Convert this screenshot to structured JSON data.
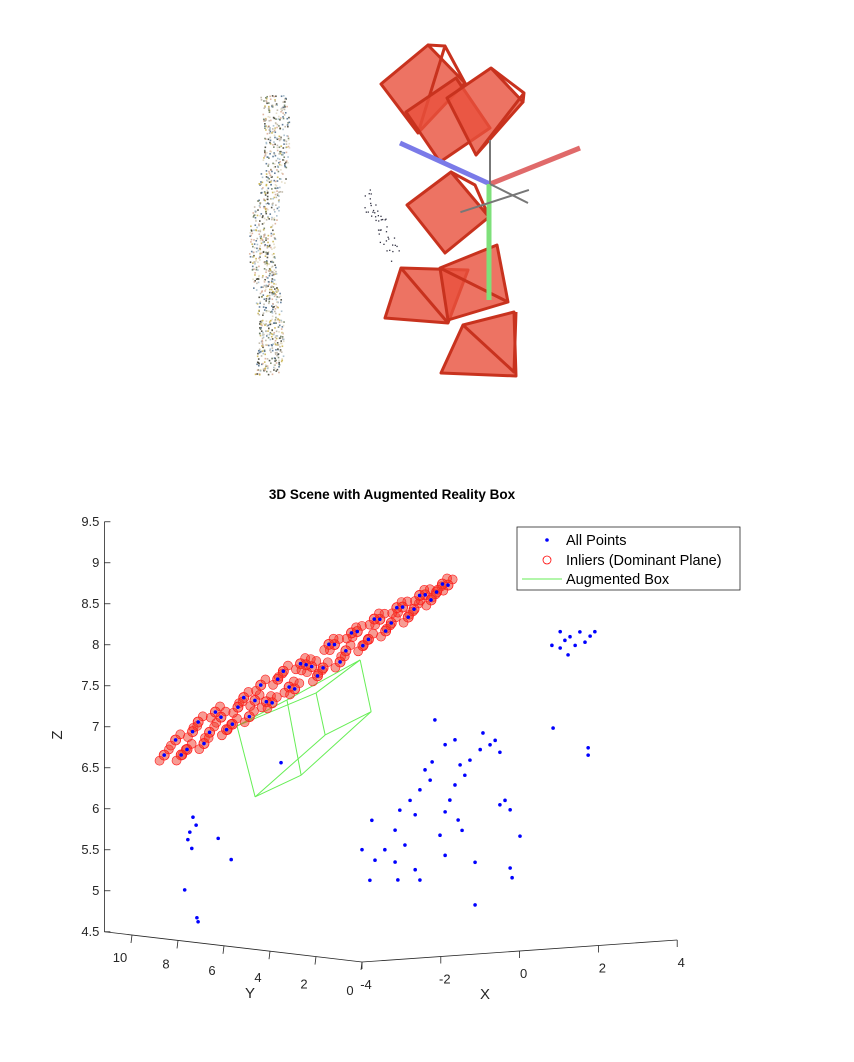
{
  "top_figure": {
    "camera_color": "#e8503c",
    "axis_colors": {
      "x": "#e06a6a",
      "y": "#7a7ae8",
      "z": "#7ee07a"
    }
  },
  "chart_data": {
    "type": "scatter",
    "projection": "3d",
    "title": "3D Scene with Augmented Reality Box",
    "xlabel": "X",
    "ylabel": "Y",
    "zlabel": "Z",
    "xlim": [
      -4,
      4
    ],
    "ylim": [
      0,
      11.2
    ],
    "zlim": [
      4.5,
      9.5
    ],
    "xticks": [
      "-4",
      "-2",
      "0",
      "2",
      "4"
    ],
    "xtick_values": [
      -4,
      -2,
      0,
      2,
      4
    ],
    "yticks": [
      "10",
      "8",
      "6",
      "4",
      "2",
      "0"
    ],
    "ytick_values": [
      10,
      8,
      6,
      4,
      2,
      0
    ],
    "zticks": [
      "9.5",
      "9",
      "8.5",
      "8",
      "7.5",
      "7",
      "6.5",
      "6",
      "5.5",
      "5",
      "4.5"
    ],
    "ztick_values": [
      9.5,
      9,
      8.5,
      8,
      7.5,
      7,
      6.5,
      6,
      5.5,
      5,
      4.5
    ],
    "grid": false,
    "legend_position": "top-right",
    "legend": [
      {
        "label": "All Points",
        "marker": "dot",
        "color": "#0000ff"
      },
      {
        "label": "Inliers (Dominant Plane)",
        "marker": "circle",
        "color": "#ff0000"
      },
      {
        "label": "Augmented Box",
        "marker": "line",
        "color": "#66ee55"
      }
    ],
    "inliers": [
      [
        -4.0,
        8.6,
        6.74
      ],
      [
        -3.88,
        8.31,
        6.93
      ],
      [
        -3.76,
        8.02,
        6.82
      ],
      [
        -3.64,
        7.74,
        7.16
      ],
      [
        -3.52,
        7.45,
        7.04
      ],
      [
        -3.4,
        7.16,
        7.23
      ],
      [
        -3.28,
        6.87,
        7.15
      ],
      [
        -3.16,
        6.58,
        7.48
      ],
      [
        -3.04,
        6.3,
        7.45
      ],
      [
        -2.92,
        6.01,
        7.44
      ],
      [
        -2.8,
        5.72,
        7.72
      ],
      [
        -2.68,
        5.43,
        7.63
      ],
      [
        -2.56,
        5.14,
        7.92
      ],
      [
        -2.44,
        4.86,
        7.89
      ],
      [
        -2.32,
        4.57,
        7.88
      ],
      [
        -2.2,
        4.28,
        8.17
      ],
      [
        -2.08,
        3.99,
        8.1
      ],
      [
        -1.96,
        3.7,
        8.34
      ],
      [
        -1.84,
        3.42,
        8.25
      ],
      [
        -1.72,
        3.13,
        8.5
      ],
      [
        -1.6,
        2.84,
        8.46
      ],
      [
        -1.48,
        2.55,
        8.66
      ],
      [
        -1.36,
        2.26,
        8.64
      ],
      [
        -1.24,
        1.98,
        8.82
      ],
      [
        -1.12,
        1.69,
        8.86
      ],
      [
        -1.0,
        1.4,
        8.95
      ],
      [
        -3.82,
        8.17,
        6.75
      ],
      [
        -3.7,
        7.88,
        7.04
      ],
      [
        -3.58,
        7.59,
        6.9
      ],
      [
        -3.46,
        7.3,
        7.29
      ],
      [
        -3.34,
        7.02,
        7.08
      ],
      [
        -3.22,
        6.73,
        7.36
      ],
      [
        -3.1,
        6.44,
        7.25
      ],
      [
        -2.98,
        6.15,
        7.64
      ],
      [
        -2.86,
        5.86,
        7.43
      ],
      [
        -2.74,
        5.58,
        7.82
      ],
      [
        -2.62,
        5.29,
        7.61
      ],
      [
        -2.5,
        5.0,
        7.91
      ],
      [
        -2.38,
        4.71,
        7.78
      ],
      [
        -2.26,
        4.42,
        8.17
      ],
      [
        -2.14,
        4.14,
        7.96
      ],
      [
        -2.02,
        3.85,
        8.32
      ],
      [
        -1.9,
        3.56,
        8.17
      ],
      [
        -1.78,
        3.27,
        8.5
      ],
      [
        -1.66,
        2.98,
        8.36
      ],
      [
        -1.54,
        2.7,
        8.65
      ],
      [
        -1.42,
        2.41,
        8.54
      ],
      [
        -1.3,
        2.12,
        8.81
      ],
      [
        -1.18,
        1.83,
        8.76
      ],
      [
        -1.06,
        1.54,
        8.96
      ]
    ],
    "other_points": [
      [
        -2.15,
        0,
        7.39
      ],
      [
        -0.93,
        0,
        7.19
      ],
      [
        -0.75,
        0,
        7.04
      ],
      [
        -1.0,
        0,
        6.99
      ],
      [
        -1.26,
        0,
        6.87
      ],
      [
        -1.51,
        0,
        6.82
      ],
      [
        -1.39,
        0,
        6.69
      ],
      [
        -1.64,
        0,
        6.58
      ],
      [
        -1.77,
        0,
        6.4
      ],
      [
        -1.89,
        0,
        6.26
      ],
      [
        -1.56,
        0,
        6.15
      ],
      [
        -1.46,
        0,
        6.02
      ],
      [
        -2.02,
        0,
        5.98
      ],
      [
        -2.4,
        0,
        6.79
      ],
      [
        -2.27,
        0,
        6.66
      ],
      [
        -2.53,
        0,
        6.55
      ],
      [
        -2.78,
        0,
        6.43
      ],
      [
        -3.04,
        0,
        6.32
      ],
      [
        -2.65,
        0,
        6.25
      ],
      [
        -3.16,
        0,
        6.08
      ],
      [
        -2.91,
        0,
        5.89
      ],
      [
        -3.42,
        0,
        5.85
      ],
      [
        -3.67,
        0,
        5.73
      ],
      [
        -3.16,
        0,
        5.69
      ],
      [
        -2.65,
        0,
        5.58
      ],
      [
        -2.53,
        0,
        5.45
      ],
      [
        -3.09,
        0,
        5.47
      ],
      [
        -3.8,
        0,
        5.49
      ],
      [
        -4.0,
        0,
        5.87
      ],
      [
        -3.75,
        0,
        6.22
      ],
      [
        -1.89,
        0,
        5.73
      ],
      [
        -1.13,
        0,
        5.62
      ],
      [
        -0.37,
        0,
        6.35
      ],
      [
        -0.24,
        0,
        6.23
      ],
      [
        -0.5,
        0,
        6.3
      ],
      [
        0.01,
        0,
        5.9
      ],
      [
        -0.24,
        0,
        5.52
      ],
      [
        -0.19,
        0,
        5.4
      ],
      [
        -1.13,
        0,
        5.1
      ],
      [
        -0.5,
        0,
        6.94
      ],
      [
        -0.62,
        0,
        7.09
      ],
      [
        -1.64,
        0,
        7.13
      ],
      [
        -1.89,
        0,
        7.08
      ],
      [
        -2.22,
        0,
        6.88
      ],
      [
        1.03,
        0,
        8.36
      ],
      [
        1.15,
        0,
        8.25
      ],
      [
        1.28,
        0,
        8.29
      ],
      [
        1.41,
        0,
        8.18
      ],
      [
        1.53,
        0,
        8.34
      ],
      [
        1.66,
        0,
        8.21
      ],
      [
        1.79,
        0,
        8.28
      ],
      [
        1.91,
        0,
        8.33
      ],
      [
        1.03,
        0,
        8.16
      ],
      [
        0.82,
        0,
        8.2
      ],
      [
        1.23,
        0,
        8.07
      ],
      [
        0.85,
        0,
        7.19
      ],
      [
        1.74,
        0,
        6.92
      ],
      [
        1.74,
        0,
        6.83
      ],
      [
        -3.62,
        8,
        5.99
      ],
      [
        -3.54,
        8,
        5.89
      ],
      [
        -3.7,
        8,
        5.81
      ],
      [
        -3.75,
        8,
        5.72
      ],
      [
        -3.65,
        8,
        5.61
      ],
      [
        -3.83,
        8,
        5.11
      ],
      [
        -3.52,
        8,
        4.76
      ],
      [
        -3.49,
        8,
        4.71
      ],
      [
        -2.65,
        8,
        5.44
      ],
      [
        -2.98,
        8,
        5.71
      ],
      [
        -3.72,
        4,
        6.79
      ]
    ],
    "box_vertices": [
      [
        -3.67,
        6,
        7.17
      ],
      [
        -3.57,
        4,
        7.55
      ],
      [
        -2.83,
        4,
        7.61
      ],
      [
        -2.88,
        2,
        8.08
      ],
      [
        -3.21,
        6,
        6.29
      ],
      [
        -3.21,
        4,
        6.62
      ],
      [
        -2.6,
        4,
        7.09
      ],
      [
        -2.6,
        2,
        7.44
      ]
    ],
    "box_edges": [
      [
        0,
        1
      ],
      [
        1,
        3
      ],
      [
        0,
        2
      ],
      [
        2,
        3
      ],
      [
        0,
        4
      ],
      [
        1,
        5
      ],
      [
        2,
        6
      ],
      [
        3,
        7
      ],
      [
        4,
        5
      ],
      [
        5,
        7
      ],
      [
        4,
        6
      ],
      [
        6,
        7
      ]
    ]
  }
}
